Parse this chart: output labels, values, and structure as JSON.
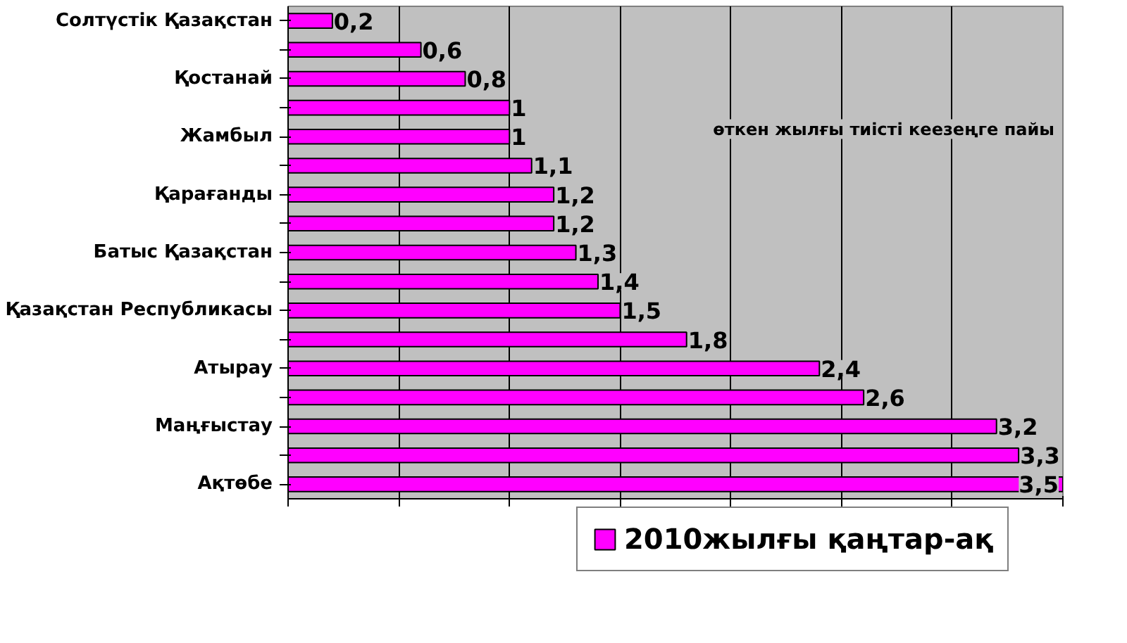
{
  "chart_data": {
    "type": "bar",
    "orientation": "horizontal",
    "categories": [
      "Солтүстік Қазақстан",
      null,
      "Қостанай",
      null,
      "Жамбыл",
      null,
      "Қарағанды",
      null,
      "Батыс Қазақстан",
      null,
      "Қазақстан Республикасы",
      null,
      "Атырау",
      null,
      "Маңғыстау",
      null,
      "Ақтөбе"
    ],
    "series": [
      {
        "name": "2010жылғы қаңтар-ақ",
        "color": "#ff00ff",
        "values": [
          0.2,
          0.6,
          0.8,
          1,
          1,
          1.1,
          1.2,
          1.2,
          1.3,
          1.4,
          1.5,
          1.8,
          2.4,
          2.6,
          3.2,
          3.3,
          3.5
        ],
        "value_labels": [
          "0,2",
          "0,6",
          "0,8",
          "1",
          "1",
          "1,1",
          "1,2",
          "1,2",
          "1,3",
          "1,4",
          "1,5",
          "1,8",
          "2,4",
          "2,6",
          "3,2",
          "3,3",
          "3,5"
        ]
      }
    ],
    "xlim": [
      0,
      3.5
    ],
    "xticks": [
      {
        "value": 0,
        "label": null
      },
      {
        "value": 0.5,
        "label": null
      },
      {
        "value": 1,
        "label": null
      },
      {
        "value": 1.5,
        "label": null
      },
      {
        "value": 2,
        "label": null
      },
      {
        "value": 2.5,
        "label": null
      },
      {
        "value": 3,
        "label": null
      },
      {
        "value": 3.5,
        "label": null
      }
    ],
    "tick_labels": "y",
    "grid": "x",
    "legend": "bottom",
    "annotations": [
      "өткен жылғы тиісті кеезеңге пайы"
    ]
  }
}
